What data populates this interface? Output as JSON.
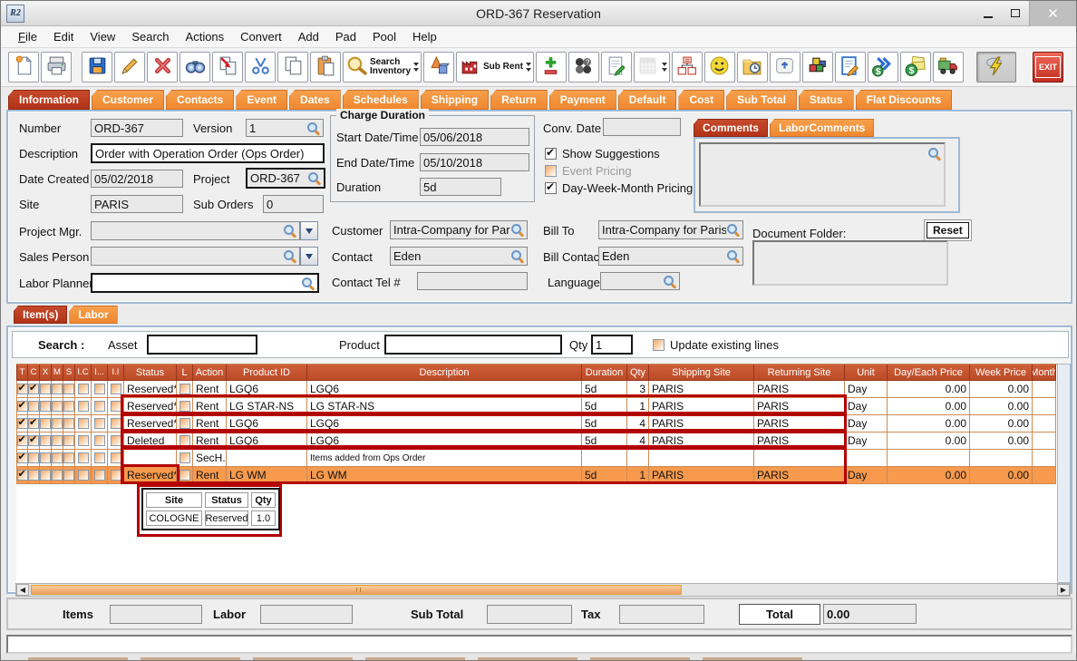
{
  "window": {
    "title": "ORD-367 Reservation",
    "app_icon_text": "R2"
  },
  "menu": {
    "items": [
      "File",
      "Edit",
      "View",
      "Search",
      "Actions",
      "Convert",
      "Add",
      "Pad",
      "Pool",
      "Help"
    ]
  },
  "toolbar": {
    "buttons": [
      {
        "name": "new-document"
      },
      {
        "name": "print"
      },
      {
        "name": "save",
        "gap": true
      },
      {
        "name": "edit-pencil"
      },
      {
        "name": "delete"
      },
      {
        "name": "find-binoculars"
      },
      {
        "name": "copy-transfer"
      },
      {
        "name": "cut"
      },
      {
        "name": "copy"
      },
      {
        "name": "paste"
      },
      {
        "name": "search-inventory",
        "label": "Search\nInventory",
        "dropdown": true
      },
      {
        "name": "shapes-3d"
      },
      {
        "name": "sub-rent",
        "label": "Sub Rent",
        "dropdown": true
      },
      {
        "name": "add-line"
      },
      {
        "name": "availability-circles"
      },
      {
        "name": "notes-pad"
      },
      {
        "name": "calendar",
        "disabled": true,
        "dropdown": true
      },
      {
        "name": "org-chart"
      },
      {
        "name": "smiley"
      },
      {
        "name": "folder-clock"
      },
      {
        "name": "keyboard-key"
      },
      {
        "name": "color-blocks"
      },
      {
        "name": "note-edit"
      },
      {
        "name": "dollar-arrows"
      },
      {
        "name": "dollar-notes"
      },
      {
        "name": "truck"
      },
      {
        "name": "lightning",
        "pressed": true,
        "push_right": true
      },
      {
        "name": "exit",
        "label": "EXIT",
        "exit": true
      }
    ]
  },
  "main_tabs": {
    "active": "Information",
    "items": [
      "Information",
      "Customer",
      "Contacts",
      "Event",
      "Dates",
      "Schedules",
      "Shipping",
      "Return",
      "Payment",
      "Default",
      "Cost",
      "Sub Total",
      "Status",
      "Flat Discounts"
    ]
  },
  "form": {
    "number": {
      "label": "Number",
      "value": "ORD-367"
    },
    "version": {
      "label": "Version",
      "value": "1"
    },
    "description": {
      "label": "Description",
      "value": "Order with Operation Order (Ops Order)"
    },
    "date_created": {
      "label": "Date Created",
      "value": "05/02/2018"
    },
    "project": {
      "label": "Project",
      "value": "ORD-367"
    },
    "site": {
      "label": "Site",
      "value": "PARIS"
    },
    "sub_orders": {
      "label": "Sub Orders",
      "value": "0"
    },
    "project_mgr": {
      "label": "Project Mgr.",
      "value": ""
    },
    "sales_person": {
      "label": "Sales Person",
      "value": ""
    },
    "labor_planner": {
      "label": "Labor Planner",
      "value": ""
    },
    "charge_duration": {
      "title": "Charge Duration",
      "start": {
        "label": "Start Date/Time",
        "value": "05/06/2018"
      },
      "end": {
        "label": "End Date/Time",
        "value": "05/10/2018"
      },
      "duration": {
        "label": "Duration",
        "value": "5d"
      }
    },
    "conv_date": {
      "label": "Conv. Date",
      "value": ""
    },
    "options": [
      {
        "label": "Show Suggestions",
        "checked": true,
        "disabled": false
      },
      {
        "label": "Event Pricing",
        "checked": false,
        "disabled": true
      },
      {
        "label": "Day-Week-Month Pricing",
        "checked": true,
        "disabled": false
      }
    ],
    "customer": {
      "label": "Customer",
      "value": "Intra-Company for Paris Site"
    },
    "bill_to": {
      "label": "Bill To",
      "value": "Intra-Company for Paris Site"
    },
    "contact": {
      "label": "Contact",
      "value": "Eden"
    },
    "bill_contact": {
      "label": "Bill Contact",
      "value": "Eden"
    },
    "contact_tel": {
      "label": "Contact Tel #",
      "value": ""
    },
    "language": {
      "label": "Language",
      "value": ""
    },
    "comments_tabs": {
      "active": "Comments",
      "items": [
        "Comments",
        "LaborComments"
      ]
    },
    "document_folder": {
      "label": "Document Folder:",
      "reset_label": "Reset",
      "value": ""
    }
  },
  "items_section": {
    "tabs": {
      "active": "Item(s)",
      "items": [
        "Item(s)",
        "Labor"
      ]
    },
    "search": {
      "label": "Search :",
      "asset_label": "Asset",
      "asset_value": "",
      "product_label": "Product",
      "product_value": "",
      "qty_label": "Qty",
      "qty_value": "1",
      "update_label": "Update existing lines",
      "update_checked": false
    },
    "table": {
      "columns": [
        "T",
        "C",
        "X",
        "M",
        "S",
        "I.C",
        "I...",
        "I.I",
        "Status",
        "L",
        "Action",
        "Product ID",
        "Description",
        "Duration",
        "Qty",
        "Shipping Site",
        "Returning Site",
        "Unit",
        "Day/Each Price",
        "Week Price",
        "Month"
      ],
      "rows": [
        {
          "checks": [
            true,
            true,
            false,
            false,
            false,
            false,
            false,
            false
          ],
          "status": "Reserved*",
          "action": "Rent",
          "product_id": "LGQ6",
          "description": "LGQ6",
          "duration": "5d",
          "qty": "3",
          "shipping_site": "PARIS",
          "returning_site": "PARIS",
          "unit": "Day",
          "day_price": "0.00",
          "week_price": "0.00",
          "selected": false,
          "small_desc": false
        },
        {
          "checks": [
            true,
            false,
            false,
            false,
            false,
            false,
            false,
            false
          ],
          "status": "Reserved*",
          "action": "Rent",
          "product_id": "LG STAR-NS",
          "description": "LG STAR-NS",
          "duration": "5d",
          "qty": "1",
          "shipping_site": "PARIS",
          "returning_site": "PARIS",
          "unit": "Day",
          "day_price": "0.00",
          "week_price": "0.00",
          "selected": false,
          "small_desc": false
        },
        {
          "checks": [
            true,
            true,
            false,
            false,
            false,
            false,
            false,
            false
          ],
          "status": "Reserved*",
          "action": "Rent",
          "product_id": "LGQ6",
          "description": "LGQ6",
          "duration": "5d",
          "qty": "4",
          "shipping_site": "PARIS",
          "returning_site": "PARIS",
          "unit": "Day",
          "day_price": "0.00",
          "week_price": "0.00",
          "selected": false,
          "small_desc": false
        },
        {
          "checks": [
            true,
            true,
            false,
            false,
            false,
            false,
            false,
            false
          ],
          "status": "Deleted",
          "action": "Rent",
          "product_id": "LGQ6",
          "description": "LGQ6",
          "duration": "5d",
          "qty": "4",
          "shipping_site": "PARIS",
          "returning_site": "PARIS",
          "unit": "Day",
          "day_price": "0.00",
          "week_price": "0.00",
          "selected": false,
          "small_desc": false
        },
        {
          "checks": [
            true,
            false,
            false,
            false,
            false,
            false,
            false,
            false
          ],
          "status": "",
          "action": "SecH...",
          "product_id": "",
          "description": "Items added from Ops Order",
          "duration": "",
          "qty": "",
          "shipping_site": "",
          "returning_site": "",
          "unit": "",
          "day_price": "",
          "week_price": "",
          "selected": false,
          "small_desc": true
        },
        {
          "checks": [
            true,
            false,
            false,
            false,
            false,
            false,
            false,
            false
          ],
          "status": "Reserved*",
          "action": "Rent",
          "product_id": "LG WM",
          "description": "LG WM",
          "duration": "5d",
          "qty": "1",
          "shipping_site": "PARIS",
          "returning_site": "PARIS",
          "unit": "Day",
          "day_price": "0.00",
          "week_price": "0.00",
          "selected": true,
          "small_desc": false
        }
      ]
    },
    "tooltip": {
      "headers": [
        "Site",
        "Status",
        "Qty"
      ],
      "rows": [
        [
          "COLOGNE",
          "Reserved",
          "1.0"
        ]
      ]
    }
  },
  "totals": {
    "items_label": "Items",
    "items_value": "",
    "labor_label": "Labor",
    "labor_value": "",
    "sub_total_label": "Sub Total",
    "sub_total_value": "",
    "tax_label": "Tax",
    "tax_value": "",
    "total_label": "Total",
    "total_value": "0.00"
  },
  "colors": {
    "tab_orange": "#f08f3c",
    "tab_active_red": "#b23318",
    "table_header": "#c1532f",
    "selected_row": "#f79a4d",
    "annotation_red": "#b30000"
  }
}
